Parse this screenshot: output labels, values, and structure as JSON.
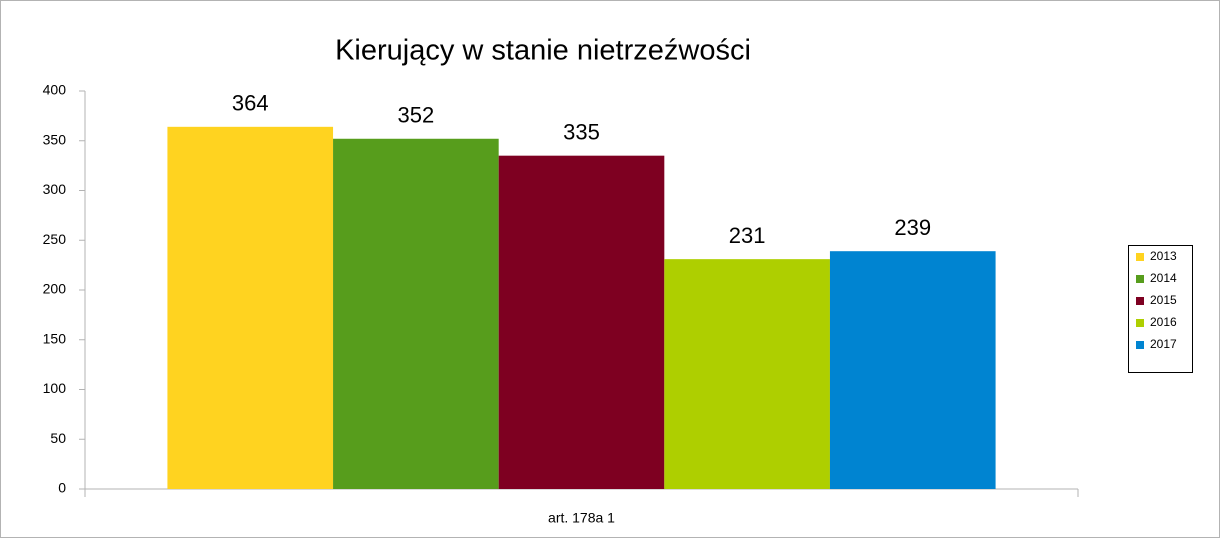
{
  "chart_data": {
    "type": "bar",
    "title": "Kierujący w stanie nietrzeźwości",
    "categories": [
      "art. 178a 1"
    ],
    "series": [
      {
        "name": "2013",
        "color": "#ffd320",
        "values": [
          364
        ]
      },
      {
        "name": "2014",
        "color": "#579d1c",
        "values": [
          352
        ]
      },
      {
        "name": "2015",
        "color": "#7e0021",
        "values": [
          335
        ]
      },
      {
        "name": "2016",
        "color": "#aecf00",
        "values": [
          231
        ]
      },
      {
        "name": "2017",
        "color": "#0084d1",
        "values": [
          239
        ]
      }
    ],
    "ylim": [
      0,
      400
    ],
    "yticks": [
      0,
      50,
      100,
      150,
      200,
      250,
      300,
      350,
      400
    ],
    "grid": false,
    "legend": "right",
    "data_labels": true
  }
}
